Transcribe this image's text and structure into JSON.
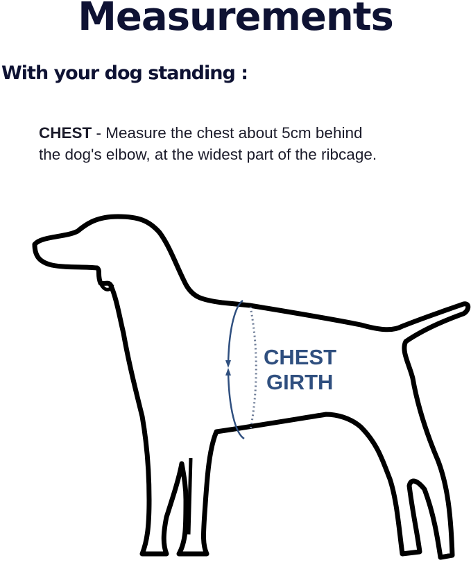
{
  "title": "Measurements",
  "subtitle": "With your dog standing :",
  "instruction": {
    "term": "CHEST",
    "line1": " - Measure the chest about 5cm behind",
    "line2": "the dog's elbow, at the widest part of the ribcage."
  },
  "diagram": {
    "label_line1": "CHEST",
    "label_line2": "GIRTH",
    "accent_color": "#2f4f7f",
    "outline_color": "#000000"
  }
}
